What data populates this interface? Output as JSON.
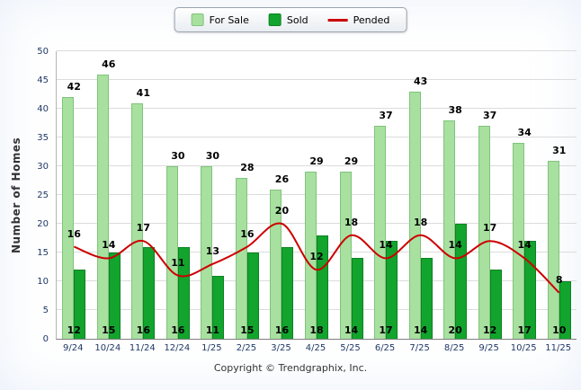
{
  "legend": {
    "for_sale": "For Sale",
    "sold": "Sold",
    "pended": "Pended"
  },
  "footer": "Copyright © Trendgraphix, Inc.",
  "colors": {
    "for_sale": "#A8E0A0",
    "for_sale_border": "#7FC47A",
    "sold": "#12A42D",
    "sold_border": "#0B8224",
    "pended": "#CC0000",
    "grid": "#DCDCDC",
    "tick_text": "#1F3864",
    "label_text": "#000000"
  },
  "chart_data": {
    "type": "bar",
    "title": "",
    "xlabel": "",
    "ylabel": "Number of Homes",
    "ylim": [
      0,
      50
    ],
    "ytick_step": 5,
    "grid": true,
    "legend_position": "top-center",
    "categories": [
      "9/24",
      "10/24",
      "11/24",
      "12/24",
      "1/25",
      "2/25",
      "3/25",
      "4/25",
      "5/25",
      "6/25",
      "7/25",
      "8/25",
      "9/25",
      "10/25",
      "11/25"
    ],
    "series": [
      {
        "name": "For Sale",
        "type": "bar",
        "values": [
          42,
          46,
          41,
          30,
          30,
          28,
          26,
          29,
          29,
          37,
          43,
          38,
          37,
          34,
          31
        ]
      },
      {
        "name": "Sold",
        "type": "bar",
        "values": [
          12,
          15,
          16,
          16,
          11,
          15,
          16,
          18,
          14,
          17,
          14,
          20,
          12,
          17,
          10
        ]
      },
      {
        "name": "Pended",
        "type": "line",
        "values": [
          16,
          14,
          17,
          11,
          13,
          16,
          20,
          12,
          18,
          14,
          18,
          14,
          17,
          14,
          8
        ]
      }
    ]
  }
}
